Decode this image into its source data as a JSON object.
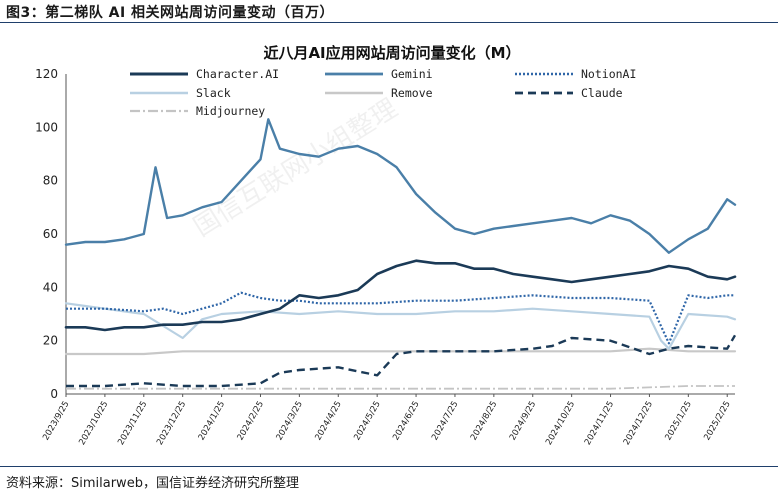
{
  "figure_title": "图3：第二梯队 AI 相关网站周访问量变动（百万）",
  "source": "资料来源：Similarweb，国信证券经济研究所整理",
  "watermark": "国信互联网小组整理",
  "chart_data": {
    "type": "line",
    "title": "近八月AI应用网站周访问量变化（M）",
    "xlabel": "",
    "ylabel": "",
    "ylim": [
      0,
      120
    ],
    "yticks": [
      0,
      20,
      40,
      60,
      80,
      100,
      120
    ],
    "x_ticks": [
      "2023/9/25",
      "2023/10/25",
      "2023/11/25",
      "2023/12/25",
      "2024/1/25",
      "2024/2/25",
      "2024/3/25",
      "2024/4/25",
      "2024/5/25",
      "2024/6/25",
      "2024/7/25",
      "2024/8/25",
      "2024/9/25",
      "2024/10/25",
      "2024/11/25",
      "2024/12/25",
      "2025/1/25",
      "2025/2/25"
    ],
    "x_range": [
      0,
      17.2
    ],
    "grid": false,
    "legend_position": "top",
    "series": [
      {
        "name": "Character.AI",
        "color": "#1b3a57",
        "width": 2.6,
        "dash": "",
        "x": [
          0,
          0.5,
          1,
          1.5,
          2,
          2.5,
          3,
          3.5,
          4,
          4.5,
          5,
          5.5,
          6,
          6.5,
          7,
          7.5,
          8,
          8.5,
          9,
          9.5,
          10,
          10.5,
          11,
          11.5,
          12,
          12.5,
          13,
          13.5,
          14,
          14.5,
          15,
          15.5,
          16,
          16.5,
          17,
          17.2
        ],
        "values": [
          25,
          25,
          24,
          25,
          25,
          26,
          26,
          27,
          27,
          28,
          30,
          32,
          37,
          36,
          37,
          39,
          45,
          48,
          50,
          49,
          49,
          47,
          47,
          45,
          44,
          43,
          42,
          43,
          44,
          45,
          46,
          48,
          47,
          44,
          43,
          44
        ]
      },
      {
        "name": "Gemini",
        "color": "#4a7fa8",
        "width": 2.4,
        "dash": "",
        "x": [
          0,
          0.5,
          1,
          1.5,
          2,
          2.3,
          2.6,
          3,
          3.5,
          4,
          4.5,
          5,
          5.2,
          5.5,
          6,
          6.5,
          7,
          7.5,
          8,
          8.5,
          9,
          9.5,
          10,
          10.5,
          11,
          11.5,
          12,
          12.5,
          13,
          13.5,
          14,
          14.5,
          15,
          15.5,
          16,
          16.5,
          17,
          17.2
        ],
        "values": [
          56,
          57,
          57,
          58,
          60,
          85,
          66,
          67,
          70,
          72,
          80,
          88,
          103,
          92,
          90,
          89,
          92,
          93,
          90,
          85,
          75,
          68,
          62,
          60,
          62,
          63,
          64,
          65,
          66,
          64,
          67,
          65,
          60,
          53,
          58,
          62,
          73,
          71
        ]
      },
      {
        "name": "NotionAI",
        "color": "#2f66a8",
        "width": 2.2,
        "dash": "2,2",
        "x": [
          0,
          1,
          2,
          2.5,
          3,
          3.5,
          4,
          4.5,
          5,
          5.5,
          6,
          6.5,
          7,
          8,
          9,
          10,
          11,
          12,
          13,
          14,
          15,
          15.5,
          16,
          16.5,
          17,
          17.2
        ],
        "values": [
          32,
          32,
          31,
          32,
          30,
          32,
          34,
          38,
          36,
          35,
          35,
          34,
          34,
          34,
          35,
          35,
          36,
          37,
          36,
          36,
          35,
          19,
          37,
          36,
          37,
          37
        ]
      },
      {
        "name": "Slack",
        "color": "#b8d0e2",
        "width": 2.2,
        "dash": "",
        "x": [
          0,
          0.5,
          1,
          2,
          3,
          3.5,
          4,
          5,
          6,
          7,
          8,
          9,
          10,
          11,
          12,
          13,
          14,
          15,
          15.3,
          15.5,
          16,
          17,
          17.2
        ],
        "values": [
          34,
          33,
          32,
          30,
          21,
          28,
          30,
          31,
          30,
          31,
          30,
          30,
          31,
          31,
          32,
          31,
          30,
          29,
          20,
          17,
          30,
          29,
          28
        ]
      },
      {
        "name": "Remove",
        "color": "#c8c8c8",
        "width": 2.2,
        "dash": "",
        "x": [
          0,
          1,
          2,
          3,
          4,
          5,
          6,
          7,
          8,
          9,
          10,
          11,
          12,
          13,
          14,
          15,
          16,
          17,
          17.2
        ],
        "values": [
          15,
          15,
          15,
          16,
          16,
          16,
          16,
          16,
          16,
          16,
          16,
          16,
          16,
          16,
          16,
          17,
          16,
          16,
          16
        ]
      },
      {
        "name": "Claude",
        "color": "#1b3a57",
        "width": 2.4,
        "dash": "8,5",
        "x": [
          0,
          1,
          2,
          3,
          4,
          5,
          5.5,
          6,
          7,
          8,
          8.5,
          9,
          10,
          11,
          12,
          12.5,
          13,
          14,
          15,
          15.5,
          16,
          17,
          17.2
        ],
        "values": [
          3,
          3,
          4,
          3,
          3,
          4,
          8,
          9,
          10,
          7,
          15,
          16,
          16,
          16,
          17,
          18,
          21,
          20,
          15,
          17,
          18,
          17,
          22
        ]
      },
      {
        "name": "Midjourney",
        "color": "#c4c4c4",
        "width": 1.8,
        "dash": "10,3,2,3",
        "x": [
          0,
          2,
          4,
          6,
          8,
          10,
          12,
          14,
          16,
          17.2
        ],
        "values": [
          2,
          2,
          2,
          2,
          2,
          2,
          2,
          2,
          3,
          3
        ]
      }
    ]
  }
}
